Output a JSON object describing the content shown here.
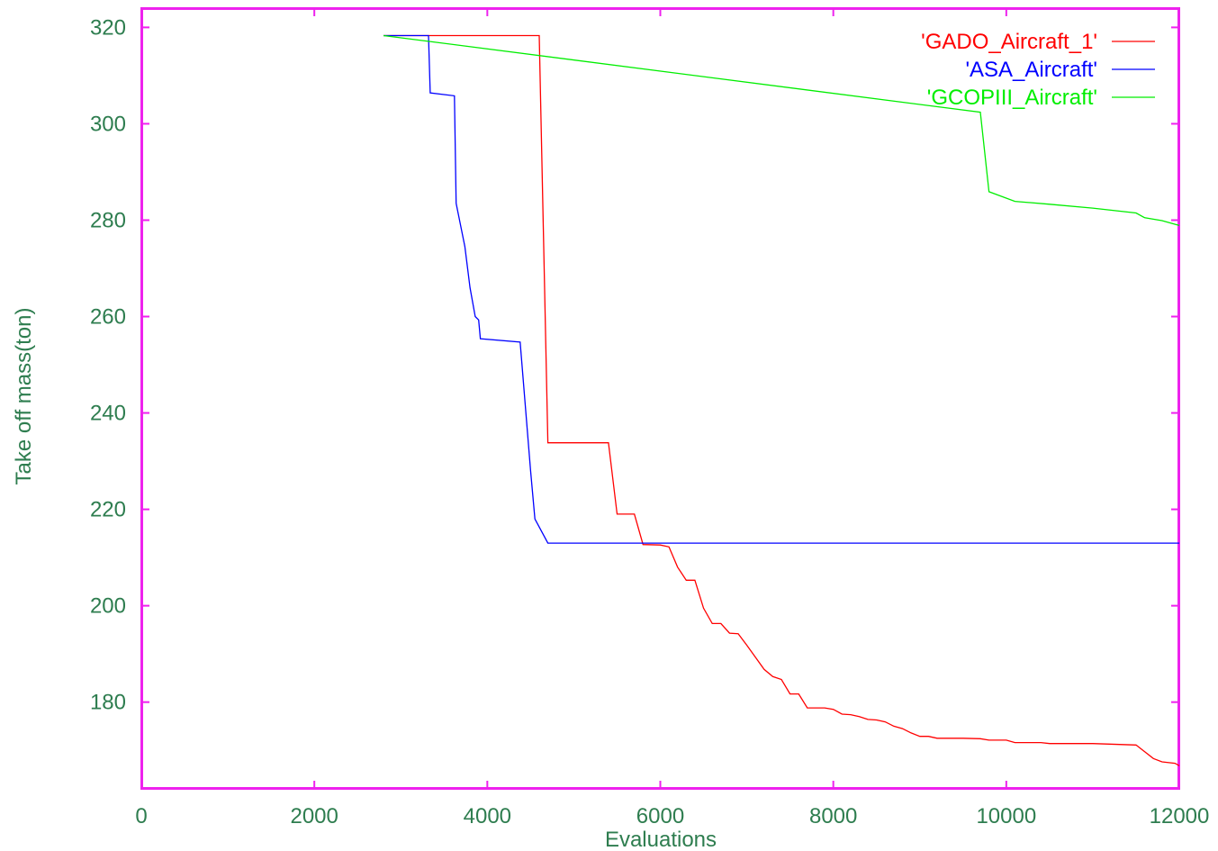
{
  "chart_data": {
    "type": "line",
    "title": "",
    "xlabel": "Evaluations",
    "ylabel": "Take off mass(ton)",
    "xlim": [
      0,
      12000
    ],
    "ylim": [
      162,
      324
    ],
    "x_ticks": [
      "0",
      "2000",
      "4000",
      "6000",
      "8000",
      "10000",
      "12000"
    ],
    "y_ticks": [
      "180",
      "200",
      "220",
      "240",
      "260",
      "280",
      "300",
      "320"
    ],
    "grid": false,
    "legend_position": "top-right",
    "frame_color": "#ee22ee",
    "tick_color": "#2e7d4f",
    "series": [
      {
        "name": "'GADO_Aircraft_1'",
        "color": "#ff0000",
        "points": [
          [
            2800,
            318.3
          ],
          [
            4600,
            318.3
          ],
          [
            4700,
            233.8
          ],
          [
            5400,
            233.8
          ],
          [
            5500,
            219.0
          ],
          [
            5700,
            219.0
          ],
          [
            5800,
            212.7
          ],
          [
            6000,
            212.6
          ],
          [
            6100,
            212.2
          ],
          [
            6200,
            208.0
          ],
          [
            6300,
            205.3
          ],
          [
            6400,
            205.3
          ],
          [
            6500,
            199.5
          ],
          [
            6600,
            196.3
          ],
          [
            6700,
            196.3
          ],
          [
            6800,
            194.3
          ],
          [
            6900,
            194.2
          ],
          [
            7000,
            191.8
          ],
          [
            7100,
            189.3
          ],
          [
            7200,
            186.8
          ],
          [
            7300,
            185.3
          ],
          [
            7400,
            184.7
          ],
          [
            7500,
            181.7
          ],
          [
            7600,
            181.7
          ],
          [
            7700,
            178.8
          ],
          [
            7900,
            178.8
          ],
          [
            8000,
            178.5
          ],
          [
            8100,
            177.5
          ],
          [
            8200,
            177.4
          ],
          [
            8300,
            177.0
          ],
          [
            8400,
            176.4
          ],
          [
            8500,
            176.3
          ],
          [
            8600,
            175.9
          ],
          [
            8700,
            175.0
          ],
          [
            8800,
            174.5
          ],
          [
            8900,
            173.6
          ],
          [
            9000,
            172.9
          ],
          [
            9100,
            172.9
          ],
          [
            9200,
            172.5
          ],
          [
            9500,
            172.5
          ],
          [
            9700,
            172.4
          ],
          [
            9800,
            172.1
          ],
          [
            10000,
            172.1
          ],
          [
            10100,
            171.6
          ],
          [
            10400,
            171.6
          ],
          [
            10500,
            171.4
          ],
          [
            11000,
            171.4
          ],
          [
            11500,
            171.1
          ],
          [
            11600,
            169.7
          ],
          [
            11700,
            168.3
          ],
          [
            11800,
            167.6
          ],
          [
            11950,
            167.3
          ],
          [
            12000,
            166.8
          ]
        ]
      },
      {
        "name": "'ASA_Aircraft'",
        "color": "#0000ff",
        "points": [
          [
            2800,
            318.3
          ],
          [
            3320,
            318.3
          ],
          [
            3340,
            306.4
          ],
          [
            3620,
            305.8
          ],
          [
            3640,
            283.5
          ],
          [
            3740,
            274.5
          ],
          [
            3800,
            266.0
          ],
          [
            3860,
            260.0
          ],
          [
            3900,
            259.3
          ],
          [
            3920,
            255.4
          ],
          [
            4380,
            254.7
          ],
          [
            4500,
            228.0
          ],
          [
            4550,
            218.0
          ],
          [
            4700,
            213.0
          ],
          [
            12000,
            213.0
          ]
        ]
      },
      {
        "name": "'GCOPIII_Aircraft'",
        "color": "#00ee00",
        "points": [
          [
            2800,
            318.3
          ],
          [
            9700,
            302.4
          ],
          [
            9800,
            285.9
          ],
          [
            10100,
            283.9
          ],
          [
            10500,
            283.3
          ],
          [
            11000,
            282.5
          ],
          [
            11500,
            281.5
          ],
          [
            11600,
            280.5
          ],
          [
            11800,
            279.9
          ],
          [
            12000,
            278.9
          ]
        ]
      }
    ]
  }
}
